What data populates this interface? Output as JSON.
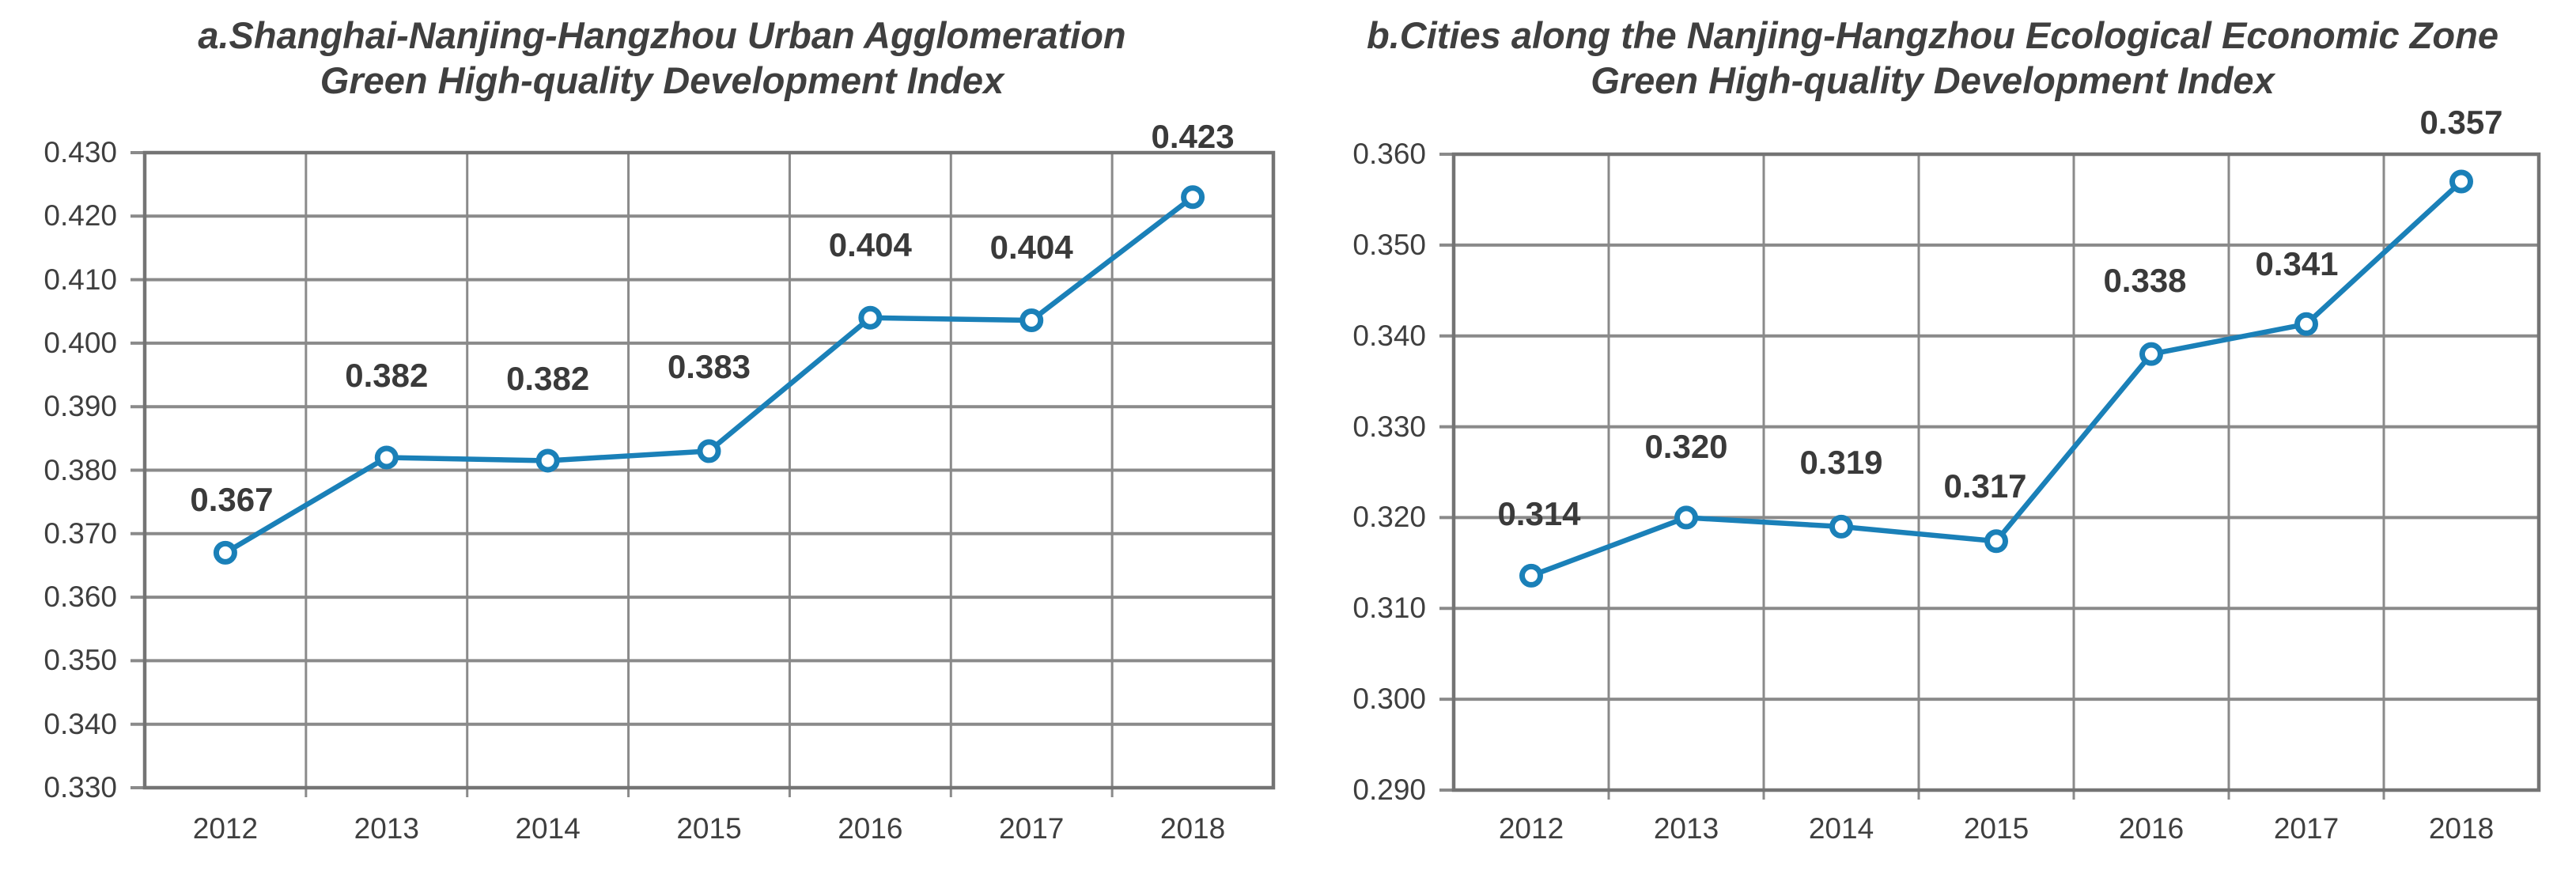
{
  "figure": {
    "background": "#ffffff",
    "description_left_panel": "a",
    "description_right_panel": "b"
  },
  "style": {
    "line_color": "#1a80b8",
    "marker_fill": "#ffffff",
    "grid_color": "#8a8a8a",
    "border_color": "#747474",
    "text_color": "#3f3f3f",
    "data_label_color": "#3a3a3a",
    "title_color": "#3f3f3f"
  },
  "chart_data": [
    {
      "id": "a",
      "type": "line",
      "title": "a.Shanghai-Nanjing-Hangzhou Urban Agglomeration Green High-quality Development Index",
      "title_lines": [
        "a.Shanghai-Nanjing-Hangzhou Urban Agglomeration",
        "Green High-quality Development Index"
      ],
      "xlabel": "",
      "ylabel": "",
      "categories": [
        "2012",
        "2013",
        "2014",
        "2015",
        "2016",
        "2017",
        "2018"
      ],
      "series": [
        {
          "name": "Green High-quality Development Index",
          "values": [
            0.367,
            0.382,
            0.3815,
            0.383,
            0.404,
            0.4036,
            0.423
          ]
        }
      ],
      "point_labels": [
        "0.367",
        "0.382",
        "0.382",
        "0.383",
        "0.404",
        "0.404",
        "0.423"
      ],
      "ylim": [
        0.33,
        0.43
      ],
      "ytick_step": 0.01,
      "ytick_labels": [
        "0.430",
        "0.420",
        "0.410",
        "0.400",
        "0.390",
        "0.380",
        "0.370",
        "0.360",
        "0.350",
        "0.340",
        "0.330"
      ],
      "grid": true,
      "legend": "none",
      "label_dy": [
        -67,
        -103,
        -103,
        -106,
        -92,
        -92,
        -76
      ],
      "label_dx": [
        8,
        0,
        0,
        0,
        0,
        0,
        0
      ]
    },
    {
      "id": "b",
      "type": "line",
      "title": "b.Cities along the Nanjing-Hangzhou Ecological Economic Zone Green High-quality Development Index",
      "title_lines": [
        "b.Cities along the Nanjing-Hangzhou Ecological Economic Zone",
        "Green High-quality Development Index"
      ],
      "xlabel": "",
      "ylabel": "",
      "categories": [
        "2012",
        "2013",
        "2014",
        "2015",
        "2016",
        "2017",
        "2018"
      ],
      "series": [
        {
          "name": "Green High-quality Development Index",
          "values": [
            0.3136,
            0.32,
            0.319,
            0.3174,
            0.338,
            0.3413,
            0.357
          ]
        }
      ],
      "point_labels": [
        "0.314",
        "0.320",
        "0.319",
        "0.317",
        "0.338",
        "0.341",
        "0.357"
      ],
      "ylim": [
        0.29,
        0.36
      ],
      "ytick_step": 0.01,
      "ytick_labels": [
        "0.360",
        "0.350",
        "0.340",
        "0.330",
        "0.320",
        "0.310",
        "0.300",
        "0.290"
      ],
      "grid": true,
      "legend": "none",
      "label_dy": [
        -78,
        -89,
        -81,
        -69,
        -93,
        -76,
        -74
      ],
      "label_dx": [
        10,
        0,
        0,
        -14,
        -8,
        -12,
        0
      ]
    }
  ]
}
